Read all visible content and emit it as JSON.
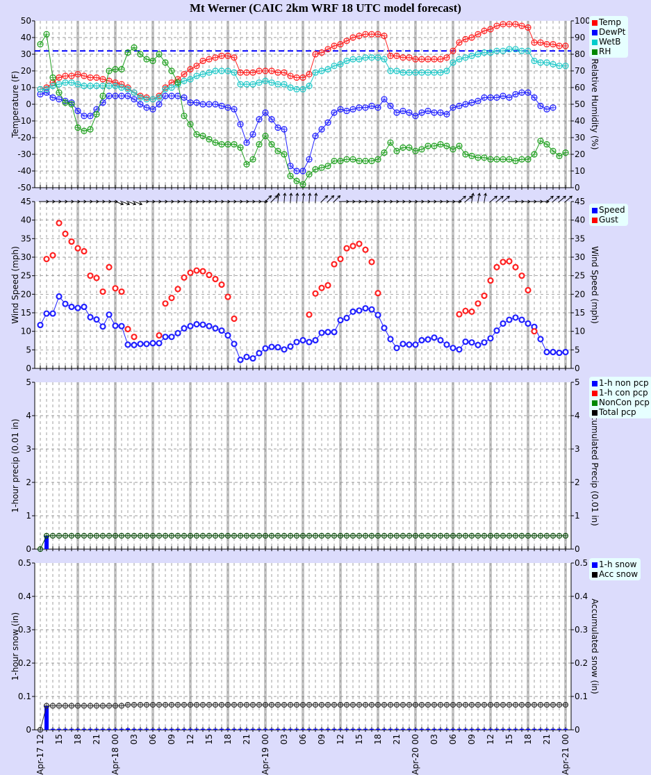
{
  "title": "Mt Werner (CAIC 2km WRF 18 UTC model forecast)",
  "xaxis": {
    "start_label": "Apr-17 12",
    "tick_labels": [
      "Apr-17 12",
      "15",
      "18",
      "21",
      "Apr-18 00",
      "03",
      "06",
      "09",
      "12",
      "15",
      "18",
      "21",
      "Apr-19 00",
      "03",
      "06",
      "09",
      "12",
      "15",
      "18",
      "21",
      "Apr-20 00",
      "03",
      "06",
      "09",
      "12",
      "15",
      "18",
      "21",
      "Apr-21 00"
    ]
  },
  "panels": {
    "temp": {
      "ylabel": "Temperature (F)",
      "y2label": "Relative Humidity (%)",
      "legend": [
        {
          "label": "Temp",
          "color": "#ff0000"
        },
        {
          "label": "DewPt",
          "color": "#0000ff"
        },
        {
          "label": "WetB",
          "color": "#00cccc"
        },
        {
          "label": "RH",
          "color": "#008800"
        }
      ]
    },
    "wind": {
      "ylabel": "Wind Speed (mph)",
      "y2label": "Wind Speed (mph)",
      "legend": [
        {
          "label": "Speed",
          "color": "#0000ff"
        },
        {
          "label": "Gust",
          "color": "#ff0000"
        }
      ]
    },
    "precip": {
      "ylabel": "1-hour precip (0.01 in)",
      "y2label": "Accumulated Precip (0.01 in)",
      "legend": [
        {
          "label": "1-h non pcp",
          "color": "#0000ff"
        },
        {
          "label": "1-h con pcp",
          "color": "#ff0000"
        },
        {
          "label": "NonCon pcp",
          "color": "#008800"
        },
        {
          "label": "Total pcp",
          "color": "#000000"
        }
      ]
    },
    "snow": {
      "ylabel": "1-hour snow (in)",
      "y2label": "Accumulated snow (in)",
      "legend": [
        {
          "label": "1-h snow",
          "color": "#0000ff"
        },
        {
          "label": "Acc snow",
          "color": "#000000"
        }
      ]
    }
  },
  "chart_data": [
    {
      "type": "line",
      "title": "Mt Werner (CAIC 2km WRF 18 UTC model forecast)",
      "xlabel": "",
      "ylabel": "Temperature (F)",
      "y2label": "Relative Humidity (%)",
      "ylim": [
        -50,
        50
      ],
      "y2lim": [
        0,
        100
      ],
      "reference_line": {
        "value": 32,
        "style": "dashed",
        "color": "#0000ff"
      },
      "x_start": "Apr-17 12",
      "x_step_hours": 1,
      "series": [
        {
          "name": "Temp",
          "axis": "left",
          "values": [
            9,
            10,
            13,
            16,
            17,
            17,
            18,
            17,
            16,
            16,
            15,
            14,
            13,
            12,
            10,
            7,
            5,
            4,
            3,
            5,
            10,
            13,
            15,
            18,
            21,
            23,
            26,
            27,
            28,
            29,
            29,
            28,
            19,
            19,
            19,
            20,
            20,
            20,
            19,
            19,
            17,
            16,
            16,
            18,
            30,
            31,
            33,
            35,
            36,
            38,
            40,
            41,
            42,
            42,
            42,
            41,
            29,
            29,
            28,
            28,
            27,
            27,
            27,
            27,
            27,
            28,
            32,
            37,
            39,
            40,
            42,
            44,
            45,
            47,
            48,
            48,
            48,
            47,
            46,
            37,
            37,
            36,
            36,
            35,
            35
          ]
        },
        {
          "name": "DewPt",
          "axis": "left",
          "values": [
            6,
            7,
            4,
            3,
            2,
            1,
            -4,
            -7,
            -7,
            -3,
            1,
            5,
            5,
            5,
            5,
            3,
            0,
            -2,
            -3,
            0,
            5,
            5,
            5,
            4,
            1,
            1,
            0,
            0,
            0,
            -1,
            -2,
            -3,
            -12,
            -23,
            -18,
            -9,
            -5,
            -9,
            -14,
            -15,
            -37,
            -40,
            -40,
            -33,
            -19,
            -15,
            -11,
            -5,
            -3,
            -4,
            -3,
            -2,
            -2,
            -1,
            -2,
            3,
            -1,
            -5,
            -4,
            -5,
            -7,
            -5,
            -4,
            -5,
            -5,
            -6,
            -2,
            -1,
            0,
            1,
            2,
            4,
            4,
            4,
            5,
            4,
            6,
            7,
            7,
            4,
            -1,
            -3,
            -2
          ]
        },
        {
          "name": "WetB",
          "axis": "left",
          "values": [
            9,
            9,
            11,
            12,
            13,
            13,
            12,
            11,
            11,
            11,
            11,
            11,
            11,
            10,
            9,
            7,
            4,
            3,
            3,
            4,
            9,
            10,
            12,
            14,
            15,
            17,
            18,
            19,
            20,
            20,
            20,
            19,
            12,
            12,
            12,
            13,
            14,
            13,
            12,
            12,
            10,
            9,
            9,
            11,
            19,
            20,
            21,
            23,
            24,
            26,
            27,
            27,
            28,
            28,
            28,
            27,
            20,
            20,
            19,
            19,
            19,
            19,
            19,
            19,
            19,
            20,
            25,
            27,
            28,
            29,
            30,
            31,
            31,
            32,
            32,
            33,
            33,
            32,
            32,
            26,
            25,
            25,
            24,
            23,
            23
          ]
        },
        {
          "name": "RH",
          "axis": "right",
          "values": [
            86,
            92,
            66,
            57,
            51,
            50,
            36,
            34,
            35,
            44,
            55,
            70,
            71,
            71,
            81,
            84,
            80,
            77,
            76,
            80,
            75,
            70,
            63,
            43,
            38,
            32,
            31,
            29,
            27,
            26,
            26,
            26,
            24,
            14,
            17,
            26,
            31,
            26,
            22,
            20,
            7,
            4,
            2,
            8,
            11,
            12,
            13,
            16,
            16,
            17,
            17,
            16,
            16,
            16,
            17,
            21,
            27,
            22,
            24,
            24,
            22,
            23,
            25,
            25,
            26,
            25,
            23,
            25,
            20,
            19,
            18,
            18,
            17,
            17,
            17,
            17,
            16,
            17,
            17,
            20,
            28,
            26,
            22,
            19,
            21
          ]
        }
      ]
    },
    {
      "type": "line",
      "ylabel": "Wind Speed (mph)",
      "ylim": [
        0,
        45
      ],
      "x_start": "Apr-17 12",
      "x_step_hours": 1,
      "series": [
        {
          "name": "Speed",
          "values": [
            11.7,
            14.8,
            14.8,
            19.4,
            17.4,
            16.6,
            16.3,
            16.6,
            13.8,
            13.2,
            11.3,
            14.5,
            11.5,
            11.4,
            6.4,
            6.3,
            6.6,
            6.6,
            6.8,
            6.8,
            8.5,
            8.5,
            9.5,
            10.8,
            11.4,
            11.9,
            11.8,
            11.4,
            10.8,
            10.2,
            8.9,
            6.6,
            2.3,
            3.1,
            2.7,
            4.1,
            5.4,
            5.8,
            5.7,
            5.1,
            5.9,
            7.1,
            7.6,
            7.1,
            7.6,
            9.6,
            9.8,
            9.8,
            13.0,
            13.6,
            15.3,
            15.6,
            16.2,
            15.9,
            14.4,
            10.9,
            7.9,
            5.5,
            6.6,
            6.4,
            6.4,
            7.6,
            7.8,
            8.3,
            7.6,
            6.4,
            5.5,
            5.1,
            7.2,
            7.0,
            6.3,
            7.0,
            8.1,
            10.2,
            12.1,
            13.1,
            13.7,
            13.1,
            12.1,
            11.2,
            7.9,
            4.4,
            4.4,
            4.2,
            4.4
          ]
        },
        {
          "name": "Gust",
          "values": [
            null,
            29.5,
            30.5,
            39.2,
            36.3,
            34.2,
            32.4,
            31.6,
            25.0,
            24.4,
            20.7,
            27.3,
            21.6,
            20.7,
            10.6,
            8.5,
            null,
            null,
            null,
            8.9,
            17.5,
            19.0,
            21.4,
            24.5,
            25.8,
            26.4,
            26.2,
            25.2,
            24.1,
            22.6,
            19.3,
            13.4,
            null,
            null,
            null,
            null,
            null,
            null,
            null,
            null,
            null,
            null,
            null,
            14.5,
            20.2,
            21.7,
            22.4,
            28.1,
            29.5,
            32.4,
            33.0,
            33.6,
            32.0,
            28.7,
            20.3,
            null,
            null,
            null,
            null,
            null,
            null,
            null,
            null,
            null,
            null,
            null,
            null,
            14.6,
            15.5,
            15.3,
            17.5,
            19.6,
            23.7,
            27.3,
            28.7,
            28.9,
            27.3,
            25.0,
            21.1,
            10.0,
            null,
            null,
            null,
            null,
            null
          ]
        },
        {
          "name": "Wind direction",
          "type": "arrows",
          "values": "mostly westerly (→), veering to southwesterly/southerly (↗/↑) around Apr-19 00–06 and Apr-20 03–09"
        }
      ]
    },
    {
      "type": "bar",
      "ylabel": "1-hour precip (0.01 in)",
      "y2label": "Accumulated Precip (0.01 in)",
      "ylim": [
        0,
        5
      ],
      "y2lim": [
        0,
        5
      ],
      "x_start": "Apr-17 12",
      "x_step_hours": 1,
      "series": [
        {
          "name": "1-h non pcp",
          "values_note": "0.4 at Apr-17 13, ~0 elsewhere"
        },
        {
          "name": "1-h con pcp",
          "values_note": "0"
        },
        {
          "name": "NonCon pcp",
          "values_note": "accumulated: 0 at Apr-17 12, 0.4 from Apr-17 13 onward"
        },
        {
          "name": "Total pcp",
          "values_note": "accumulated: 0 at Apr-17 12, 0.4 from Apr-17 13 onward"
        }
      ]
    },
    {
      "type": "bar",
      "ylabel": "1-hour snow (in)",
      "y2label": "Accumulated snow (in)",
      "ylim": [
        0,
        0.5
      ],
      "y2lim": [
        0,
        0.5
      ],
      "x_start": "Apr-17 12",
      "x_step_hours": 1,
      "series": [
        {
          "name": "1-h snow",
          "values_note": "0.072 at Apr-17 13, ~0 elsewhere (tiny trace near Apr-18 02)"
        },
        {
          "name": "Acc snow",
          "values_note": "0 at Apr-17 12, ~0.072 from Apr-17 13 onward, ~0.075 after Apr-18 02"
        }
      ]
    }
  ]
}
